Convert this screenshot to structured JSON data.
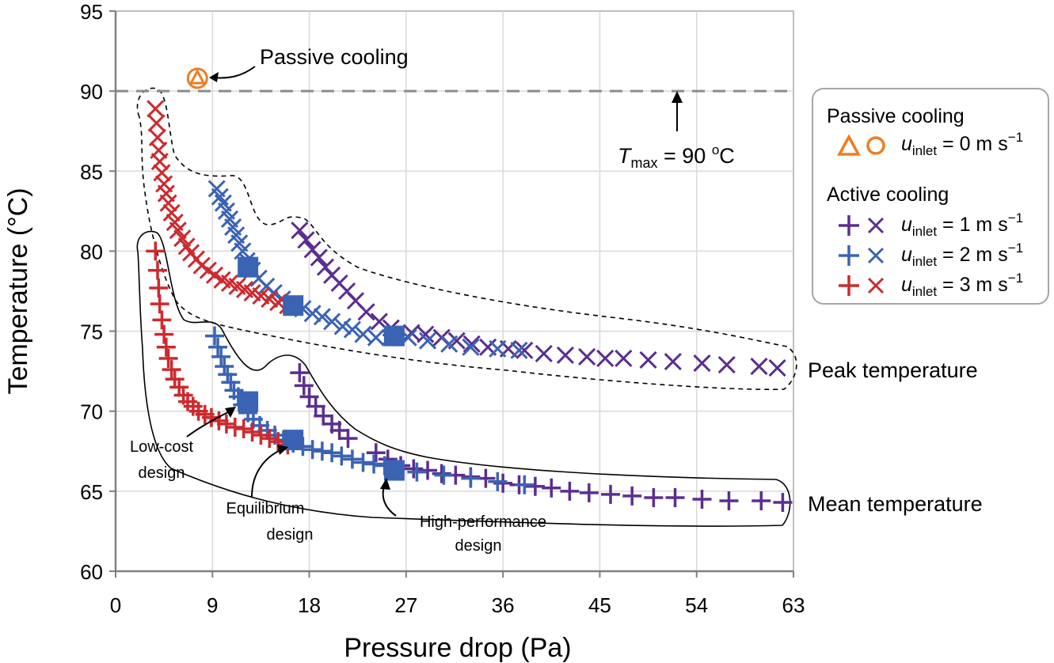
{
  "chart_data": {
    "type": "scatter",
    "xlabel": "Pressure drop (Pa)",
    "ylabel": "Temperature (°C)",
    "xlim": [
      0,
      63
    ],
    "ylim": [
      60,
      95
    ],
    "xticks": [
      "0",
      "9",
      "18",
      "27",
      "36",
      "45",
      "54",
      "63"
    ],
    "yticks": [
      "60",
      "65",
      "70",
      "75",
      "80",
      "85",
      "90",
      "95"
    ],
    "grid": true,
    "colors": {
      "passive": "#ee7d24",
      "u1": "#5b2e8f",
      "u2": "#3b63b4",
      "u3": "#cc2a2e",
      "tmax_line": "#8c8c8c"
    },
    "series": [
      {
        "name": "u=1 peak",
        "marker": "x",
        "color": "#5b2e8f",
        "points": [
          [
            17.1,
            81.3
          ],
          [
            17.7,
            80.7
          ],
          [
            18.3,
            80.1
          ],
          [
            18.9,
            79.6
          ],
          [
            19.5,
            79.0
          ],
          [
            20.1,
            78.5
          ],
          [
            20.8,
            78.0
          ],
          [
            21.5,
            77.5
          ],
          [
            22.3,
            76.9
          ],
          [
            23.3,
            76.2
          ],
          [
            24.5,
            75.6
          ],
          [
            25.6,
            75.2
          ],
          [
            27.5,
            74.9
          ],
          [
            28.8,
            74.8
          ],
          [
            30.3,
            74.6
          ],
          [
            31.7,
            74.4
          ],
          [
            33.1,
            74.2
          ],
          [
            34.6,
            74.0
          ],
          [
            36.5,
            73.9
          ],
          [
            38.0,
            73.8
          ],
          [
            39.8,
            73.6
          ],
          [
            41.8,
            73.5
          ],
          [
            43.8,
            73.4
          ],
          [
            45.5,
            73.3
          ],
          [
            47.2,
            73.3
          ],
          [
            49.5,
            73.2
          ],
          [
            51.8,
            73.1
          ],
          [
            54.5,
            73.0
          ],
          [
            56.8,
            72.9
          ],
          [
            59.8,
            72.8
          ],
          [
            61.5,
            72.7
          ]
        ]
      },
      {
        "name": "u=1 mean",
        "marker": "plus",
        "color": "#5b2e8f",
        "points": [
          [
            17.1,
            72.4
          ],
          [
            17.5,
            71.6
          ],
          [
            18.0,
            70.9
          ],
          [
            18.6,
            70.3
          ],
          [
            19.3,
            69.7
          ],
          [
            20.1,
            69.2
          ],
          [
            20.8,
            68.8
          ],
          [
            21.6,
            68.3
          ],
          [
            24.2,
            67.4
          ],
          [
            25.3,
            67.0
          ],
          [
            26.5,
            66.6
          ],
          [
            27.7,
            66.4
          ],
          [
            29.0,
            66.3
          ],
          [
            30.3,
            66.1
          ],
          [
            31.6,
            66.0
          ],
          [
            33.0,
            65.9
          ],
          [
            34.4,
            65.8
          ],
          [
            36.0,
            65.5
          ],
          [
            37.5,
            65.4
          ],
          [
            39.0,
            65.3
          ],
          [
            40.5,
            65.2
          ],
          [
            42.2,
            65.0
          ],
          [
            44.0,
            64.9
          ],
          [
            46.0,
            64.8
          ],
          [
            48.0,
            64.7
          ],
          [
            50.0,
            64.6
          ],
          [
            52.0,
            64.6
          ],
          [
            54.5,
            64.5
          ],
          [
            57.0,
            64.4
          ],
          [
            60.0,
            64.4
          ],
          [
            62.0,
            64.3
          ]
        ]
      },
      {
        "name": "u=2 peak",
        "marker": "x",
        "color": "#3b63b4",
        "points": [
          [
            9.4,
            83.9
          ],
          [
            9.7,
            83.4
          ],
          [
            10.0,
            83.0
          ],
          [
            10.3,
            82.5
          ],
          [
            10.6,
            82.0
          ],
          [
            10.9,
            81.5
          ],
          [
            11.2,
            81.0
          ],
          [
            11.5,
            80.5
          ],
          [
            11.8,
            80.0
          ],
          [
            12.2,
            79.4
          ],
          [
            12.7,
            78.8
          ],
          [
            13.3,
            78.3
          ],
          [
            14.0,
            77.8
          ],
          [
            14.7,
            77.4
          ],
          [
            15.5,
            77.0
          ],
          [
            16.4,
            76.7
          ],
          [
            17.4,
            76.4
          ],
          [
            18.3,
            76.1
          ],
          [
            19.2,
            75.9
          ],
          [
            20.1,
            75.6
          ],
          [
            21.1,
            75.3
          ],
          [
            22.0,
            75.1
          ],
          [
            23.0,
            74.8
          ],
          [
            24.2,
            74.6
          ],
          [
            25.5,
            74.6
          ],
          [
            27.2,
            74.6
          ],
          [
            29.0,
            74.4
          ],
          [
            31.0,
            74.2
          ],
          [
            33.0,
            74.0
          ],
          [
            35.5,
            73.9
          ],
          [
            37.5,
            73.8
          ]
        ]
      },
      {
        "name": "u=2 mean",
        "marker": "plus",
        "color": "#3b63b4",
        "points": [
          [
            9.2,
            74.7
          ],
          [
            9.5,
            74.0
          ],
          [
            9.8,
            73.4
          ],
          [
            10.1,
            72.8
          ],
          [
            10.4,
            72.3
          ],
          [
            10.7,
            71.8
          ],
          [
            11.0,
            71.3
          ],
          [
            11.4,
            70.9
          ],
          [
            11.8,
            70.4
          ],
          [
            12.3,
            69.9
          ],
          [
            12.8,
            69.5
          ],
          [
            13.4,
            69.1
          ],
          [
            14.1,
            68.8
          ],
          [
            14.8,
            68.5
          ],
          [
            15.6,
            68.2
          ],
          [
            16.5,
            68.0
          ],
          [
            17.4,
            67.8
          ],
          [
            18.3,
            67.6
          ],
          [
            19.2,
            67.5
          ],
          [
            20.1,
            67.4
          ],
          [
            21.0,
            67.2
          ],
          [
            22.0,
            67.0
          ],
          [
            23.0,
            66.8
          ],
          [
            24.0,
            66.7
          ],
          [
            25.0,
            66.6
          ],
          [
            26.0,
            66.4
          ],
          [
            28.0,
            66.2
          ],
          [
            30.5,
            66.0
          ],
          [
            33.0,
            65.8
          ],
          [
            35.5,
            65.6
          ],
          [
            38.0,
            65.4
          ]
        ]
      },
      {
        "name": "u=3 peak",
        "marker": "x",
        "color": "#cc2a2e",
        "points": [
          [
            3.7,
            88.9
          ],
          [
            3.8,
            88.0
          ],
          [
            3.9,
            87.1
          ],
          [
            4.0,
            86.3
          ],
          [
            4.1,
            85.6
          ],
          [
            4.3,
            84.9
          ],
          [
            4.5,
            84.2
          ],
          [
            4.7,
            83.6
          ],
          [
            4.9,
            83.0
          ],
          [
            5.2,
            82.4
          ],
          [
            5.5,
            81.8
          ],
          [
            5.8,
            81.3
          ],
          [
            6.2,
            80.8
          ],
          [
            6.6,
            80.3
          ],
          [
            7.0,
            79.9
          ],
          [
            7.5,
            79.5
          ],
          [
            8.0,
            79.1
          ],
          [
            8.6,
            78.8
          ],
          [
            9.2,
            78.5
          ],
          [
            9.9,
            78.2
          ],
          [
            10.6,
            78.0
          ],
          [
            11.3,
            77.8
          ],
          [
            12.0,
            77.6
          ],
          [
            12.7,
            77.4
          ],
          [
            13.5,
            77.2
          ],
          [
            14.3,
            77.0
          ],
          [
            15.1,
            76.8
          ],
          [
            16.0,
            76.6
          ]
        ]
      },
      {
        "name": "u=3 mean",
        "marker": "plus",
        "color": "#cc2a2e",
        "points": [
          [
            3.7,
            80.0
          ],
          [
            3.9,
            78.8
          ],
          [
            4.0,
            77.7
          ],
          [
            4.1,
            76.7
          ],
          [
            4.3,
            75.7
          ],
          [
            4.5,
            74.8
          ],
          [
            4.7,
            74.0
          ],
          [
            4.9,
            73.3
          ],
          [
            5.2,
            72.6
          ],
          [
            5.5,
            72.0
          ],
          [
            5.9,
            71.5
          ],
          [
            6.3,
            71.0
          ],
          [
            6.7,
            70.6
          ],
          [
            7.2,
            70.3
          ],
          [
            7.7,
            70.0
          ],
          [
            8.3,
            69.8
          ],
          [
            8.9,
            69.6
          ],
          [
            9.6,
            69.4
          ],
          [
            10.3,
            69.2
          ],
          [
            11.1,
            69.0
          ],
          [
            11.9,
            68.9
          ],
          [
            12.7,
            68.7
          ],
          [
            13.5,
            68.5
          ],
          [
            14.3,
            68.3
          ],
          [
            15.1,
            68.1
          ],
          [
            16.0,
            67.9
          ]
        ]
      }
    ],
    "highlighted_designs": [
      [
        12.3,
        79.0
      ],
      [
        12.3,
        70.6
      ],
      [
        16.5,
        76.6
      ],
      [
        16.5,
        68.2
      ],
      [
        25.9,
        74.7
      ],
      [
        25.9,
        66.3
      ]
    ],
    "passive_point": [
      7.6,
      90.8
    ],
    "tmax_value": 90,
    "annotations": {
      "passive_cooling": "Passive cooling",
      "tmax_T": "T",
      "tmax_sub": "max",
      "tmax_rest": " = 90 ",
      "tmax_deg": "o",
      "tmax_C": "C",
      "peak_temperature": "Peak temperature",
      "mean_temperature": "Mean temperature",
      "low_cost_line1": "Low-cost",
      "low_cost_line2": "design",
      "equilibrium_line1": "Equilibrium",
      "equilibrium_line2": "design",
      "high_perf_line1": "High-performance",
      "high_perf_line2": "design"
    },
    "legend": {
      "passive_title": "Passive cooling",
      "active_title": "Active cooling",
      "u_symbol": "u",
      "u_sub": "inlet",
      "entries": [
        {
          "label_value": " = 0 m s",
          "exp": "−1",
          "color": "#ee7d24"
        },
        {
          "label_value": " = 1 m s",
          "exp": "−1",
          "color": "#5b2e8f"
        },
        {
          "label_value": " = 2 m s",
          "exp": "−1",
          "color": "#3b63b4"
        },
        {
          "label_value": " = 3 m s",
          "exp": "−1",
          "color": "#cc2a2e"
        }
      ]
    }
  }
}
